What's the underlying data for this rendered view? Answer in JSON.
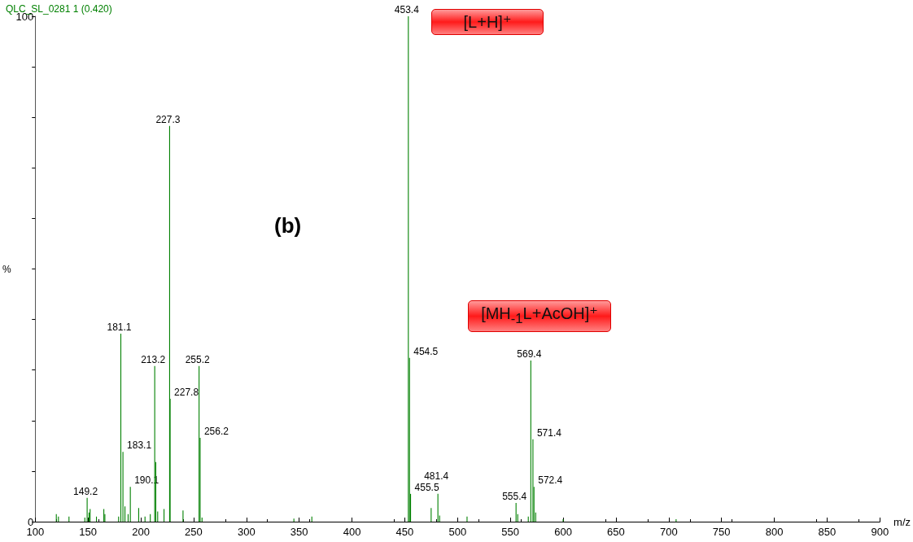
{
  "chart_data": {
    "type": "bar",
    "title": "QLC_SL_0281 1 (0.420)",
    "xlabel": "m/z",
    "ylabel": "%",
    "color": "#008000",
    "x": [
      120,
      122,
      132,
      147,
      149.2,
      151,
      152,
      158,
      165,
      166,
      179,
      181.1,
      183.1,
      185,
      188,
      190.1,
      198,
      204,
      209,
      213.2,
      214.2,
      216,
      222,
      227.3,
      227.8,
      240,
      255.2,
      256.2,
      258,
      345,
      362,
      453.4,
      454.5,
      455.5,
      475,
      481.4,
      483,
      509,
      555.4,
      557,
      567,
      569.4,
      571.4,
      572.4,
      574,
      600,
      707
    ],
    "values": [
      1.5,
      1.0,
      1.0,
      0.8,
      4.7,
      1.8,
      2.5,
      1.0,
      2.5,
      1.5,
      1.0,
      37.2,
      13.8,
      3.0,
      1.5,
      6.9,
      2.7,
      1.0,
      1.5,
      30.8,
      11.8,
      2.0,
      2.5,
      78.3,
      24.3,
      2.2,
      30.8,
      16.6,
      0.8,
      0.6,
      1.0,
      100,
      32.4,
      5.5,
      2.7,
      5.5,
      1.2,
      1.0,
      3.7,
      1.5,
      1.0,
      31.9,
      16.3,
      6.9,
      1.8,
      0.5,
      0.5
    ],
    "xlim": [
      100,
      900
    ],
    "xticks": [
      100,
      150,
      200,
      250,
      300,
      350,
      400,
      450,
      500,
      550,
      600,
      650,
      700,
      750,
      800,
      850,
      900
    ],
    "ylim": [
      0,
      100
    ],
    "yticks": [
      0,
      {
        "value": 10,
        "label": null
      },
      {
        "value": 20,
        "label": null
      },
      {
        "value": 30,
        "label": null
      },
      {
        "value": 40,
        "label": null
      },
      {
        "value": 50,
        "label": null
      },
      {
        "value": 60,
        "label": null
      },
      {
        "value": 70,
        "label": null
      },
      {
        "value": 80,
        "label": null
      },
      {
        "value": 90,
        "label": null
      },
      100
    ],
    "grid": false,
    "annotations": [
      "(b)",
      "[L+H]⁺",
      "[MH$_{-1}$L+AcOH]⁺",
      {
        "text": "149.2",
        "x": 149.2,
        "y": 4.7
      },
      {
        "text": "181.1",
        "x": 181.1,
        "y": 37.2
      },
      {
        "text": "183.1",
        "x": 183.1,
        "y": 13.8
      },
      {
        "text": "190.1",
        "x": 190.1,
        "y": 6.9
      },
      {
        "text": "213.2",
        "x": 213.2,
        "y": 30.8
      },
      {
        "text": "227.3",
        "x": 227.3,
        "y": 78.3
      },
      {
        "text": "227.8",
        "x": 227.8,
        "y": 24.3
      },
      {
        "text": "255.2",
        "x": 255.2,
        "y": 30.8
      },
      {
        "text": "256.2",
        "x": 256.2,
        "y": 16.6
      },
      {
        "text": "453.4",
        "x": 453.4,
        "y": 100
      },
      {
        "text": "454.5",
        "x": 454.5,
        "y": 32.4
      },
      {
        "text": "455.5",
        "x": 455.5,
        "y": 5.5
      },
      {
        "text": "481.4",
        "x": 481.4,
        "y": 5.5
      },
      {
        "text": "555.4",
        "x": 555.4,
        "y": 3.7
      },
      {
        "text": "569.4",
        "x": 569.4,
        "y": 31.9
      },
      {
        "text": "571.4",
        "x": 571.4,
        "y": 16.3
      },
      {
        "text": "572.4",
        "x": 572.4,
        "y": 6.9
      }
    ]
  }
}
